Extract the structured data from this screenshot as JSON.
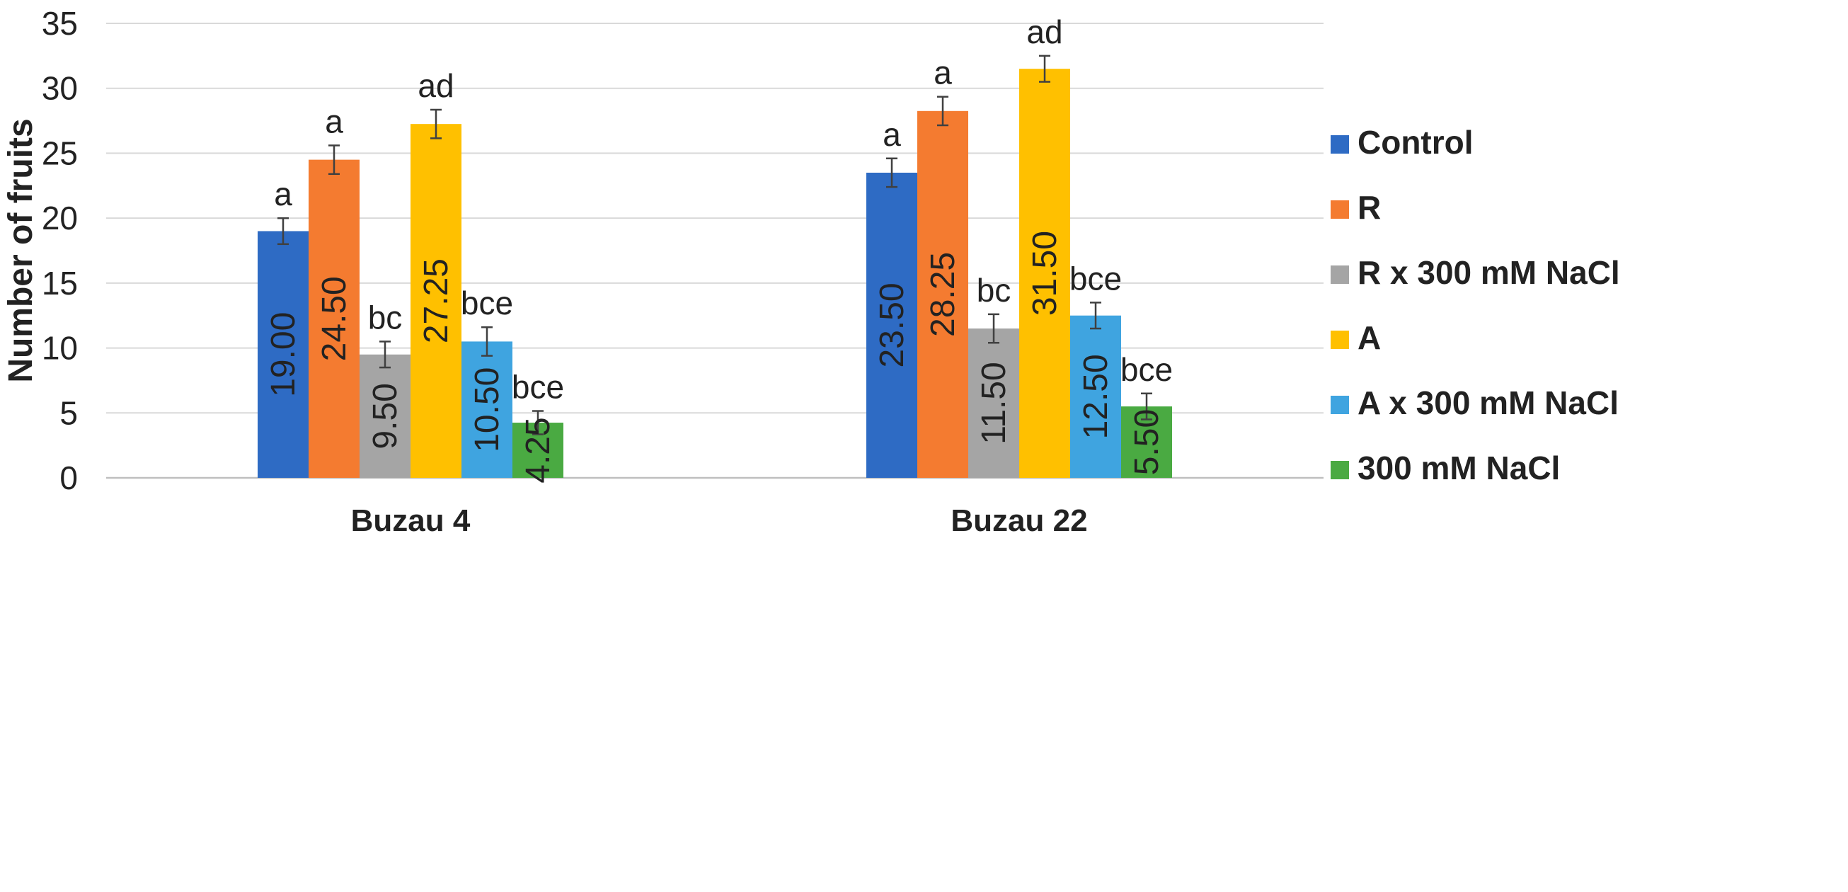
{
  "chart_data": {
    "type": "bar",
    "ylabel": "Number of fruits",
    "xlabel": "",
    "ylim": [
      0,
      35
    ],
    "yticks": [
      0,
      5,
      10,
      15,
      20,
      25,
      30,
      35
    ],
    "grid": true,
    "legend_position": "right",
    "categories": [
      "Buzau 4",
      "Buzau 22"
    ],
    "series": [
      {
        "name": "Control",
        "color": "#2E6BC4",
        "values": [
          19.0,
          23.5
        ],
        "labels": [
          "19.00",
          "23.50"
        ],
        "error": [
          1.0,
          1.1
        ],
        "significance": [
          "a",
          "a"
        ]
      },
      {
        "name": "R",
        "color": "#F47B30",
        "values": [
          24.5,
          28.25
        ],
        "labels": [
          "24.50",
          "28.25"
        ],
        "error": [
          1.1,
          1.1
        ],
        "significance": [
          "a",
          "a"
        ]
      },
      {
        "name": "R x 300 mM NaCl",
        "color": "#A5A5A5",
        "values": [
          9.5,
          11.5
        ],
        "labels": [
          "9.50",
          "11.50"
        ],
        "error": [
          1.0,
          1.1
        ],
        "significance": [
          "bc",
          "bc"
        ]
      },
      {
        "name": "A",
        "color": "#FFC000",
        "values": [
          27.25,
          31.5
        ],
        "labels": [
          "27.25",
          "31.50"
        ],
        "error": [
          1.1,
          1.0
        ],
        "significance": [
          "ad",
          "ad"
        ]
      },
      {
        "name": "A x 300 mM NaCl",
        "color": "#3FA4E0",
        "values": [
          10.5,
          12.5
        ],
        "labels": [
          "10.50",
          "12.50"
        ],
        "error": [
          1.1,
          1.0
        ],
        "significance": [
          "bce",
          "bce"
        ]
      },
      {
        "name": "300 mM NaCl",
        "color": "#4AAA42",
        "values": [
          4.25,
          5.5
        ],
        "labels": [
          "4.25",
          "5.50"
        ],
        "error": [
          0.9,
          1.0
        ],
        "significance": [
          "bce",
          "bce"
        ]
      }
    ]
  }
}
